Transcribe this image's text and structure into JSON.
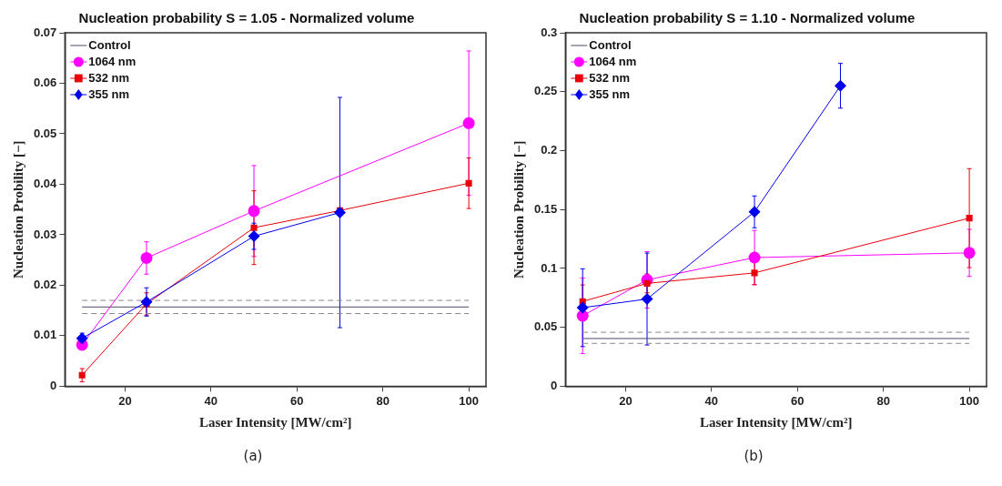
{
  "chart_data": [
    {
      "type": "line",
      "title": "Nucleation probability S = 1.05 - Normalized volume",
      "xlabel": "Laser Intensity [MW/cm²]",
      "ylabel": "Nucleation Probility [−]",
      "annotations": [
        "(a)"
      ],
      "xlim": [
        6,
        104
      ],
      "xticks": [
        20,
        40,
        60,
        80,
        100
      ],
      "ylim": [
        0,
        0.07
      ],
      "yticks": [
        0,
        0.01,
        0.02,
        0.03,
        0.04,
        0.05,
        0.06,
        0.07
      ],
      "grid": false,
      "legend": "top left",
      "series": [
        {
          "name": "Control",
          "color": "#4a4a66",
          "marker": "none",
          "line_style": "solid",
          "x": [
            10,
            100
          ],
          "values": [
            0.0157,
            0.0157
          ]
        },
        {
          "color": "#888888",
          "marker": "none",
          "line_style": "dashed",
          "x": [
            10,
            100
          ],
          "values": [
            0.017,
            0.017
          ]
        },
        {
          "color": "#888888",
          "marker": "none",
          "line_style": "dashed",
          "x": [
            10,
            100
          ],
          "values": [
            0.0144,
            0.0144
          ]
        },
        {
          "name": "1064 nm",
          "color": "#ff00ff",
          "marker": "circle",
          "line_style": "solid",
          "x": [
            10,
            25,
            50,
            100
          ],
          "values": [
            0.0082,
            0.0254,
            0.0347,
            0.0521
          ],
          "errors": [
            null,
            0.0032,
            0.009,
            0.0143
          ]
        },
        {
          "name": "532 nm",
          "color": "#e8000b",
          "marker": "square",
          "line_style": "solid",
          "x": [
            10,
            25,
            50,
            70,
            100
          ],
          "values": [
            0.0022,
            0.0163,
            0.0314,
            0.0348,
            0.0402
          ],
          "errors": [
            0.0013,
            0.0022,
            0.0073,
            null,
            0.005
          ]
        },
        {
          "name": "355 nm",
          "color": "#0000ee",
          "marker": "diamond",
          "line_style": "solid",
          "x": [
            10,
            25,
            50,
            70
          ],
          "values": [
            0.0095,
            0.0167,
            0.0297,
            0.0344
          ],
          "errors": [
            0.001,
            0.0028,
            0.0026,
            0.0228
          ]
        }
      ]
    },
    {
      "type": "line",
      "title": "Nucleation probability S = 1.10 - Normalized volume",
      "xlabel": "Laser Intensity [MW/cm²]",
      "ylabel": "Nucleation Probility [−]",
      "annotations": [
        "(b)"
      ],
      "xlim": [
        6,
        104
      ],
      "xticks": [
        20,
        40,
        60,
        80,
        100
      ],
      "ylim": [
        0,
        0.3
      ],
      "yticks": [
        0,
        0.05,
        0.1,
        0.15,
        0.2,
        0.25,
        0.3
      ],
      "grid": false,
      "legend": "top left",
      "series": [
        {
          "name": "Control",
          "color": "#4a4a66",
          "marker": "none",
          "line_style": "solid",
          "x": [
            10,
            100
          ],
          "values": [
            0.0405,
            0.0405
          ]
        },
        {
          "color": "#888888",
          "marker": "none",
          "line_style": "dashed",
          "x": [
            10,
            100
          ],
          "values": [
            0.0458,
            0.0458
          ]
        },
        {
          "color": "#888888",
          "marker": "none",
          "line_style": "dashed",
          "x": [
            10,
            100
          ],
          "values": [
            0.0364,
            0.0364
          ]
        },
        {
          "name": "1064 nm",
          "color": "#ff00ff",
          "marker": "circle",
          "line_style": "solid",
          "x": [
            10,
            25,
            50,
            100
          ],
          "values": [
            0.0598,
            0.0903,
            0.1092,
            0.1132
          ],
          "errors": [
            0.032,
            0.024,
            0.023,
            0.02
          ]
        },
        {
          "name": "532 nm",
          "color": "#e8000b",
          "marker": "square",
          "line_style": "solid",
          "x": [
            10,
            25,
            50,
            100
          ],
          "values": [
            0.072,
            0.0873,
            0.0962,
            0.1427
          ],
          "errors": [
            0.014,
            0.008,
            0.01,
            0.042
          ]
        },
        {
          "name": "355 nm",
          "color": "#0000ee",
          "marker": "diamond",
          "line_style": "solid",
          "x": [
            10,
            25,
            50,
            70
          ],
          "values": [
            0.0667,
            0.074,
            0.148,
            0.255
          ],
          "errors": [
            0.033,
            0.039,
            0.0135,
            0.019
          ]
        }
      ]
    }
  ]
}
